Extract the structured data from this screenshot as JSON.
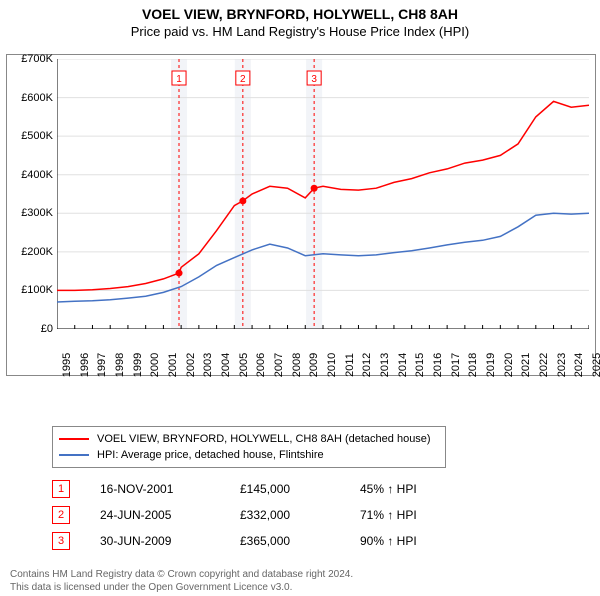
{
  "title": "VOEL VIEW, BRYNFORD, HOLYWELL, CH8 8AH",
  "subtitle": "Price paid vs. HM Land Registry's House Price Index (HPI)",
  "chart": {
    "type": "line",
    "background_color": "#ffffff",
    "border_color": "#888888",
    "grid_color": "#e0e0e0",
    "title_fontsize": 14,
    "label_fontsize": 11,
    "ylim": [
      0,
      700000
    ],
    "ytick_step": 100000,
    "yticks": [
      "£0",
      "£100K",
      "£200K",
      "£300K",
      "£400K",
      "£500K",
      "£600K",
      "£700K"
    ],
    "xlim": [
      1995,
      2025
    ],
    "xticks": [
      1995,
      1996,
      1997,
      1998,
      1999,
      2000,
      2001,
      2002,
      2003,
      2004,
      2005,
      2006,
      2007,
      2008,
      2009,
      2010,
      2011,
      2012,
      2013,
      2014,
      2015,
      2016,
      2017,
      2018,
      2019,
      2020,
      2021,
      2022,
      2023,
      2024,
      2025
    ],
    "series": [
      {
        "name": "VOEL VIEW, BRYNFORD, HOLYWELL, CH8 8AH (detached house)",
        "color": "#ff0000",
        "line_width": 1.5,
        "x": [
          1995,
          1996,
          1997,
          1998,
          1999,
          2000,
          2001,
          2001.88,
          2002,
          2003,
          2004,
          2005,
          2005.48,
          2006,
          2007,
          2008,
          2009,
          2009.5,
          2010,
          2011,
          2012,
          2013,
          2014,
          2015,
          2016,
          2017,
          2018,
          2019,
          2020,
          2021,
          2022,
          2023,
          2024,
          2025
        ],
        "y": [
          100000,
          100000,
          102000,
          105000,
          110000,
          118000,
          130000,
          145000,
          160000,
          195000,
          255000,
          320000,
          332000,
          350000,
          370000,
          365000,
          340000,
          365000,
          370000,
          362000,
          360000,
          365000,
          380000,
          390000,
          405000,
          415000,
          430000,
          438000,
          450000,
          480000,
          550000,
          590000,
          575000,
          580000
        ]
      },
      {
        "name": "HPI: Average price, detached house, Flintshire",
        "color": "#4472c4",
        "line_width": 1.5,
        "x": [
          1995,
          1996,
          1997,
          1998,
          1999,
          2000,
          2001,
          2002,
          2003,
          2004,
          2005,
          2006,
          2007,
          2008,
          2009,
          2010,
          2011,
          2012,
          2013,
          2014,
          2015,
          2016,
          2017,
          2018,
          2019,
          2020,
          2021,
          2022,
          2023,
          2024,
          2025
        ],
        "y": [
          70000,
          72000,
          73000,
          76000,
          80000,
          85000,
          95000,
          110000,
          135000,
          165000,
          185000,
          205000,
          220000,
          210000,
          190000,
          195000,
          192000,
          190000,
          192000,
          198000,
          203000,
          210000,
          218000,
          225000,
          230000,
          240000,
          265000,
          295000,
          300000,
          298000,
          300000
        ]
      }
    ],
    "sale_markers": {
      "color": "#ff0000",
      "box_border": "#ff0000",
      "divider_color": "#ff0000",
      "divider_dash": "3,3",
      "band_fill": "#f2f4f8",
      "items": [
        {
          "n": "1",
          "date": "16-NOV-2001",
          "x": 2001.88,
          "price": "£145,000",
          "hpi": "45% ↑ HPI",
          "y": 145000
        },
        {
          "n": "2",
          "date": "24-JUN-2005",
          "x": 2005.48,
          "price": "£332,000",
          "hpi": "71% ↑ HPI",
          "y": 332000
        },
        {
          "n": "3",
          "date": "30-JUN-2009",
          "x": 2009.5,
          "price": "£365,000",
          "hpi": "90% ↑ HPI",
          "y": 365000
        }
      ]
    }
  },
  "legend": [
    {
      "color": "#ff0000",
      "label": "VOEL VIEW, BRYNFORD, HOLYWELL, CH8 8AH (detached house)"
    },
    {
      "color": "#4472c4",
      "label": "HPI: Average price, detached house, Flintshire"
    }
  ],
  "attribution": {
    "line1": "Contains HM Land Registry data © Crown copyright and database right 2024.",
    "line2": "This data is licensed under the Open Government Licence v3.0."
  }
}
